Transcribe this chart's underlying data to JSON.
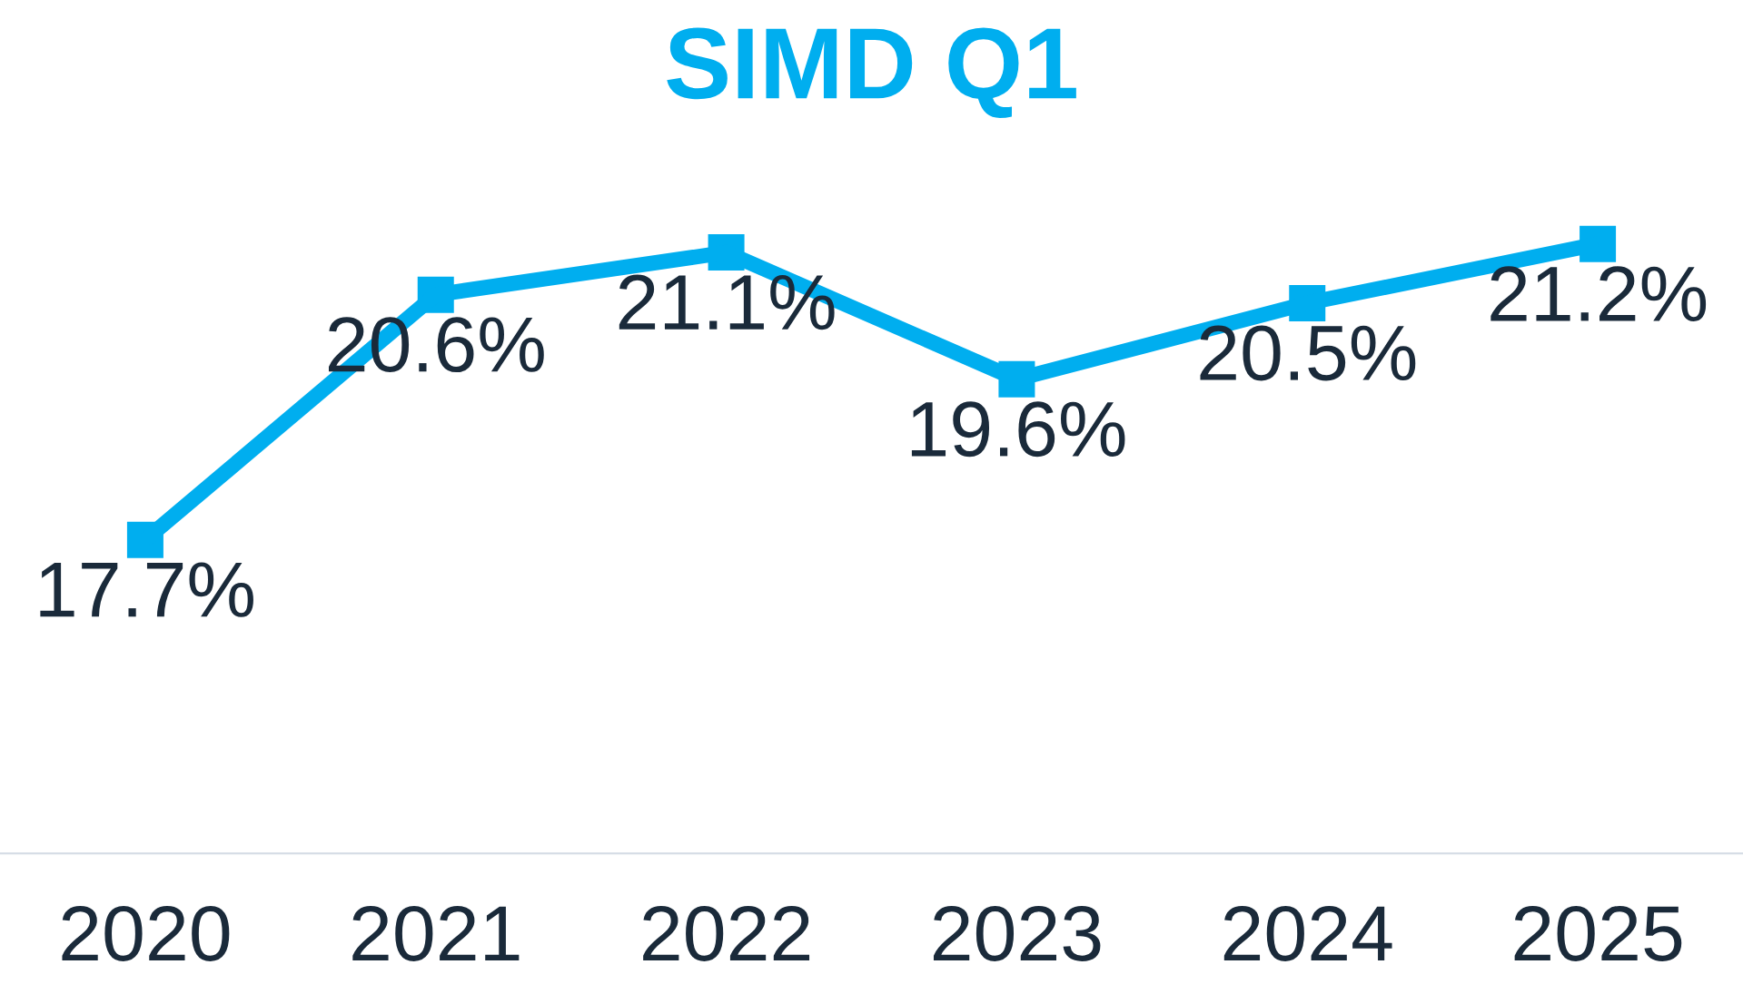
{
  "chart_data": {
    "type": "line",
    "title": "SIMD Q1",
    "categories": [
      "2020",
      "2021",
      "2022",
      "2023",
      "2024",
      "2025"
    ],
    "series": [
      {
        "color": "#00aeef",
        "values": [
          17.7,
          20.6,
          21.1,
          19.6,
          20.5,
          21.2
        ],
        "value_labels": [
          "17.7%",
          "20.6%",
          "21.1%",
          "19.6%",
          "20.5%",
          "21.2%"
        ]
      }
    ],
    "tick_labels": "x",
    "marker": "square",
    "line_style": "solid",
    "grid": false,
    "legend": false
  }
}
